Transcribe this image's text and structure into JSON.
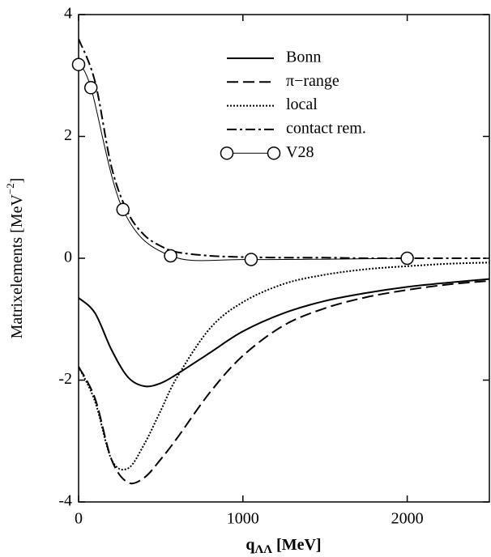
{
  "chart_data": {
    "type": "line",
    "ylabel": {
      "text": "Matrixelements [MeV",
      "sup": "−2",
      "end": "]"
    },
    "xlabel": {
      "text": "q",
      "sub": "ΛΛ",
      "end": " [MeV]"
    },
    "x": [
      0,
      100,
      200,
      300,
      400,
      500,
      600,
      800,
      1000,
      1250,
      1500,
      1750,
      2000,
      2250,
      2500
    ],
    "series": [
      {
        "name": "Bonn",
        "color": "#000000",
        "style": "solid",
        "values": [
          -0.65,
          -0.9,
          -1.5,
          -1.95,
          -2.1,
          -2.05,
          -1.9,
          -1.55,
          -1.2,
          -0.9,
          -0.7,
          -0.57,
          -0.47,
          -0.4,
          -0.34
        ]
      },
      {
        "name": "π−range",
        "color": "#000000",
        "style": "dashed",
        "values": [
          -1.78,
          -2.3,
          -3.3,
          -3.68,
          -3.6,
          -3.3,
          -2.95,
          -2.2,
          -1.6,
          -1.1,
          -0.82,
          -0.64,
          -0.52,
          -0.43,
          -0.37
        ]
      },
      {
        "name": "local",
        "color": "#000000",
        "style": "dotted",
        "values": [
          -1.78,
          -2.35,
          -3.3,
          -3.45,
          -3.05,
          -2.5,
          -1.95,
          -1.15,
          -0.72,
          -0.42,
          -0.27,
          -0.18,
          -0.13,
          -0.09,
          -0.07
        ]
      },
      {
        "name": "contact rem.",
        "color": "#000000",
        "style": "dashdot",
        "values": [
          3.6,
          2.9,
          1.5,
          0.75,
          0.38,
          0.2,
          0.1,
          0.04,
          0.02,
          0.01,
          0.01,
          0,
          0,
          0,
          0
        ]
      },
      {
        "name": "V28",
        "color": "#000000",
        "style": "thin",
        "markers": "circle",
        "x": [
          0,
          75,
          270,
          560,
          1050,
          2000
        ],
        "values": [
          3.18,
          2.8,
          0.8,
          0.04,
          -0.02,
          0.0
        ]
      }
    ],
    "xlim": [
      0,
      2500
    ],
    "xticks": [
      0,
      1000,
      2000
    ],
    "ylim": [
      -4,
      4
    ],
    "yticks": [
      -4,
      -2,
      0,
      2,
      4
    ],
    "legend": "upper right"
  }
}
